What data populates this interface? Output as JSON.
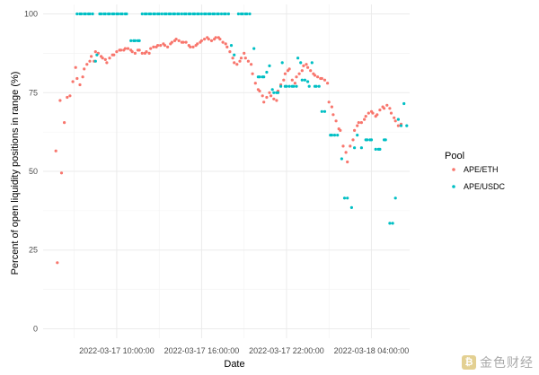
{
  "chart_data": {
    "type": "scatter",
    "title": "",
    "xlabel": "Date",
    "ylabel": "Percent of open liquidity positions in range (%)",
    "x_unit": "hours since 2022-03-17 00:00:00",
    "xlim": [
      4.8,
      30.7
    ],
    "ylim": [
      -3,
      103
    ],
    "x_ticks": [
      {
        "value": 10,
        "label": "2022-03-17 10:00:00"
      },
      {
        "value": 16,
        "label": "2022-03-17 16:00:00"
      },
      {
        "value": 22,
        "label": "2022-03-17 22:00:00"
      },
      {
        "value": 28,
        "label": "2022-03-18 04:00:00"
      }
    ],
    "y_ticks": [
      0,
      25,
      50,
      75,
      100
    ],
    "grid": true,
    "legend": {
      "title": "Pool",
      "position": "right"
    },
    "series": [
      {
        "name": "APE/ETH",
        "color": "#F8766D",
        "points": [
          [
            5.7,
            56.5
          ],
          [
            5.8,
            21
          ],
          [
            6.0,
            72.5
          ],
          [
            6.1,
            49.5
          ],
          [
            6.3,
            65.5
          ],
          [
            6.5,
            73.5
          ],
          [
            6.7,
            74
          ],
          [
            6.9,
            78.5
          ],
          [
            7.1,
            83
          ],
          [
            7.2,
            79.5
          ],
          [
            7.4,
            77.5
          ],
          [
            7.6,
            80
          ],
          [
            7.7,
            82.5
          ],
          [
            7.9,
            84
          ],
          [
            8.1,
            85
          ],
          [
            8.2,
            86.5
          ],
          [
            8.4,
            85
          ],
          [
            8.5,
            88
          ],
          [
            8.7,
            87.5
          ],
          [
            8.9,
            86.5
          ],
          [
            9.0,
            86
          ],
          [
            9.2,
            85.5
          ],
          [
            9.3,
            84.5
          ],
          [
            9.5,
            86
          ],
          [
            9.7,
            87
          ],
          [
            9.8,
            87
          ],
          [
            10.0,
            88
          ],
          [
            10.2,
            88.5
          ],
          [
            10.3,
            88.5
          ],
          [
            10.5,
            88.5
          ],
          [
            10.6,
            89
          ],
          [
            10.8,
            89
          ],
          [
            11.0,
            88.5
          ],
          [
            11.1,
            88
          ],
          [
            11.3,
            87.5
          ],
          [
            11.5,
            88.5
          ],
          [
            11.6,
            88.5
          ],
          [
            11.8,
            87.5
          ],
          [
            12.0,
            87.5
          ],
          [
            12.1,
            88
          ],
          [
            12.3,
            87.5
          ],
          [
            12.4,
            89
          ],
          [
            12.6,
            89.5
          ],
          [
            12.8,
            89.5
          ],
          [
            12.9,
            90
          ],
          [
            13.1,
            90
          ],
          [
            13.3,
            90.5
          ],
          [
            13.4,
            90
          ],
          [
            13.6,
            89.5
          ],
          [
            13.8,
            90.5
          ],
          [
            13.9,
            91
          ],
          [
            14.1,
            91.5
          ],
          [
            14.2,
            92
          ],
          [
            14.4,
            91.5
          ],
          [
            14.6,
            91
          ],
          [
            14.7,
            91
          ],
          [
            14.9,
            91
          ],
          [
            15.1,
            90
          ],
          [
            15.2,
            89.5
          ],
          [
            15.4,
            89.5
          ],
          [
            15.6,
            90
          ],
          [
            15.7,
            90.5
          ],
          [
            15.9,
            91
          ],
          [
            16.0,
            91.5
          ],
          [
            16.2,
            92
          ],
          [
            16.4,
            92.5
          ],
          [
            16.5,
            92
          ],
          [
            16.7,
            91.5
          ],
          [
            16.9,
            92
          ],
          [
            17.0,
            92.5
          ],
          [
            17.2,
            92.5
          ],
          [
            17.3,
            92
          ],
          [
            17.5,
            91
          ],
          [
            17.7,
            90.5
          ],
          [
            17.8,
            89.5
          ],
          [
            18.0,
            88
          ],
          [
            18.2,
            86
          ],
          [
            18.3,
            84.5
          ],
          [
            18.5,
            84
          ],
          [
            18.7,
            85
          ],
          [
            18.8,
            86
          ],
          [
            19.0,
            87.5
          ],
          [
            19.1,
            86
          ],
          [
            19.3,
            85
          ],
          [
            19.5,
            84
          ],
          [
            19.6,
            81
          ],
          [
            19.8,
            78
          ],
          [
            20.0,
            76
          ],
          [
            20.1,
            75.5
          ],
          [
            20.3,
            74
          ],
          [
            20.4,
            72
          ],
          [
            20.6,
            73.5
          ],
          [
            20.8,
            75
          ],
          [
            20.9,
            74
          ],
          [
            21.1,
            73
          ],
          [
            21.3,
            72.5
          ],
          [
            21.4,
            75.5
          ],
          [
            21.6,
            77.5
          ],
          [
            21.8,
            79
          ],
          [
            21.9,
            81
          ],
          [
            22.1,
            82
          ],
          [
            22.2,
            82.5
          ],
          [
            22.4,
            79
          ],
          [
            22.6,
            78
          ],
          [
            22.7,
            80
          ],
          [
            22.9,
            81
          ],
          [
            23.1,
            82
          ],
          [
            23.2,
            83.5
          ],
          [
            23.4,
            84
          ],
          [
            23.5,
            83
          ],
          [
            23.7,
            82
          ],
          [
            23.9,
            81
          ],
          [
            24.0,
            80.5
          ],
          [
            24.2,
            80
          ],
          [
            24.4,
            79.5
          ],
          [
            24.5,
            79.5
          ],
          [
            24.7,
            79
          ],
          [
            24.9,
            78
          ],
          [
            25.0,
            72
          ],
          [
            25.2,
            70.5
          ],
          [
            25.3,
            68
          ],
          [
            25.5,
            66
          ],
          [
            25.7,
            63.5
          ],
          [
            25.8,
            63
          ],
          [
            26.0,
            58
          ],
          [
            26.2,
            56
          ],
          [
            26.3,
            53
          ],
          [
            26.5,
            58
          ],
          [
            26.7,
            60
          ],
          [
            26.8,
            63
          ],
          [
            27.0,
            64.5
          ],
          [
            27.1,
            65.5
          ],
          [
            27.3,
            65.5
          ],
          [
            27.5,
            66.5
          ],
          [
            27.6,
            67.5
          ],
          [
            27.8,
            68.5
          ],
          [
            28.0,
            69
          ],
          [
            28.1,
            68.5
          ],
          [
            28.3,
            67.5
          ],
          [
            28.4,
            68
          ],
          [
            28.6,
            69.5
          ],
          [
            28.8,
            70.5
          ],
          [
            28.9,
            70
          ],
          [
            29.1,
            71
          ],
          [
            29.3,
            70
          ],
          [
            29.4,
            68.5
          ],
          [
            29.6,
            67
          ],
          [
            29.7,
            66
          ],
          [
            29.9,
            64.5
          ],
          [
            30.1,
            65
          ]
        ]
      },
      {
        "name": "APE/USDC",
        "color": "#00BFC4",
        "points": [
          [
            7.2,
            100
          ],
          [
            7.4,
            100
          ],
          [
            7.5,
            100
          ],
          [
            7.7,
            100
          ],
          [
            7.8,
            100
          ],
          [
            8.0,
            100
          ],
          [
            8.1,
            100
          ],
          [
            8.3,
            100
          ],
          [
            8.5,
            85
          ],
          [
            8.6,
            87
          ],
          [
            8.8,
            100
          ],
          [
            8.9,
            100
          ],
          [
            9.1,
            100
          ],
          [
            9.2,
            100
          ],
          [
            9.4,
            100
          ],
          [
            9.5,
            100
          ],
          [
            9.7,
            100
          ],
          [
            9.8,
            100
          ],
          [
            10.0,
            100
          ],
          [
            10.1,
            100
          ],
          [
            10.3,
            100
          ],
          [
            10.4,
            100
          ],
          [
            10.6,
            100
          ],
          [
            10.7,
            100
          ],
          [
            11.0,
            91.5
          ],
          [
            11.2,
            91.5
          ],
          [
            11.3,
            91.5
          ],
          [
            11.5,
            91.5
          ],
          [
            11.6,
            91.5
          ],
          [
            11.8,
            100
          ],
          [
            12.0,
            100
          ],
          [
            12.1,
            100
          ],
          [
            12.3,
            100
          ],
          [
            12.4,
            100
          ],
          [
            12.6,
            100
          ],
          [
            12.7,
            100
          ],
          [
            12.9,
            100
          ],
          [
            13.0,
            100
          ],
          [
            13.2,
            100
          ],
          [
            13.4,
            100
          ],
          [
            13.5,
            100
          ],
          [
            13.7,
            100
          ],
          [
            13.8,
            100
          ],
          [
            14.0,
            100
          ],
          [
            14.1,
            100
          ],
          [
            14.3,
            100
          ],
          [
            14.4,
            100
          ],
          [
            14.6,
            100
          ],
          [
            14.8,
            100
          ],
          [
            14.9,
            100
          ],
          [
            15.1,
            100
          ],
          [
            15.2,
            100
          ],
          [
            15.4,
            100
          ],
          [
            15.5,
            100
          ],
          [
            15.7,
            100
          ],
          [
            15.8,
            100
          ],
          [
            16.0,
            100
          ],
          [
            16.2,
            100
          ],
          [
            16.3,
            100
          ],
          [
            16.5,
            100
          ],
          [
            16.6,
            100
          ],
          [
            16.8,
            100
          ],
          [
            16.9,
            100
          ],
          [
            17.1,
            100
          ],
          [
            17.2,
            100
          ],
          [
            17.4,
            100
          ],
          [
            17.6,
            100
          ],
          [
            17.7,
            100
          ],
          [
            17.9,
            100
          ],
          [
            18.1,
            90
          ],
          [
            18.3,
            87
          ],
          [
            18.6,
            100
          ],
          [
            18.8,
            100
          ],
          [
            18.9,
            100
          ],
          [
            19.1,
            100
          ],
          [
            19.2,
            100
          ],
          [
            19.4,
            100
          ],
          [
            19.7,
            89
          ],
          [
            20.0,
            80
          ],
          [
            20.1,
            80
          ],
          [
            20.3,
            80
          ],
          [
            20.4,
            80
          ],
          [
            20.6,
            81.5
          ],
          [
            20.8,
            83.5
          ],
          [
            21.0,
            76
          ],
          [
            21.1,
            75
          ],
          [
            21.3,
            75
          ],
          [
            21.4,
            75
          ],
          [
            21.6,
            77
          ],
          [
            21.7,
            84.5
          ],
          [
            21.9,
            77
          ],
          [
            22.0,
            77
          ],
          [
            22.2,
            77
          ],
          [
            22.4,
            77
          ],
          [
            22.5,
            77
          ],
          [
            22.7,
            77
          ],
          [
            22.8,
            86
          ],
          [
            23.0,
            84.5
          ],
          [
            23.1,
            79
          ],
          [
            23.3,
            79
          ],
          [
            23.5,
            78.5
          ],
          [
            23.6,
            77
          ],
          [
            23.8,
            84.5
          ],
          [
            24.0,
            77
          ],
          [
            24.1,
            77
          ],
          [
            24.3,
            77
          ],
          [
            24.5,
            69
          ],
          [
            24.7,
            69
          ],
          [
            25.1,
            61.5
          ],
          [
            25.2,
            61.5
          ],
          [
            25.4,
            61.5
          ],
          [
            25.6,
            61.5
          ],
          [
            25.9,
            54
          ],
          [
            26.1,
            41.5
          ],
          [
            26.3,
            41.5
          ],
          [
            26.6,
            38.5
          ],
          [
            26.8,
            57.5
          ],
          [
            27.0,
            61.5
          ],
          [
            27.3,
            57.5
          ],
          [
            27.6,
            60
          ],
          [
            27.7,
            60
          ],
          [
            27.9,
            60
          ],
          [
            28.0,
            60
          ],
          [
            28.3,
            57
          ],
          [
            28.5,
            57
          ],
          [
            28.6,
            57
          ],
          [
            28.9,
            60
          ],
          [
            29.0,
            60
          ],
          [
            29.3,
            33.5
          ],
          [
            29.5,
            33.5
          ],
          [
            29.7,
            41.5
          ],
          [
            29.9,
            66.5
          ],
          [
            30.1,
            64.5
          ],
          [
            30.3,
            71.5
          ],
          [
            30.5,
            64.5
          ]
        ]
      }
    ]
  }
}
